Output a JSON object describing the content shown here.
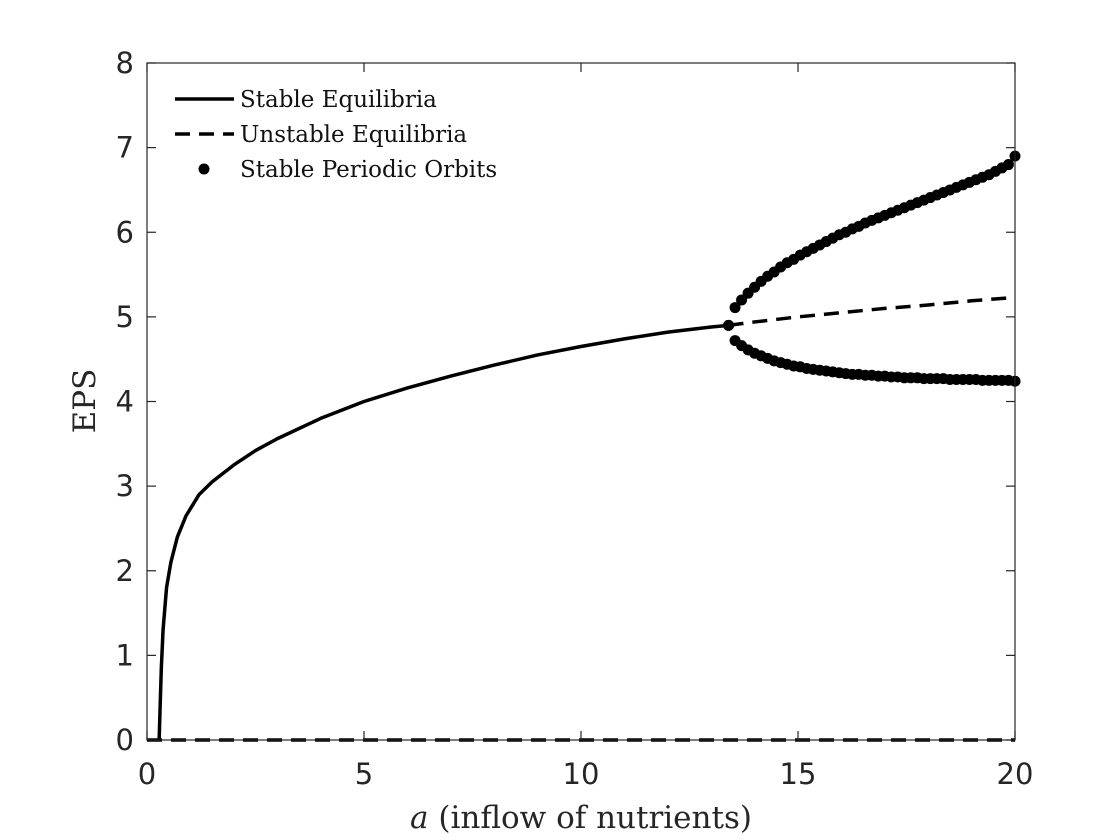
{
  "chart_data": {
    "type": "line",
    "xlabel_var": "a",
    "xlabel_rest": " (inflow of nutrients)",
    "ylabel": "EPS",
    "xlim": [
      0,
      20
    ],
    "ylim": [
      0,
      8
    ],
    "xticks": [
      0,
      5,
      10,
      15,
      20
    ],
    "yticks": [
      0,
      1,
      2,
      3,
      4,
      5,
      6,
      7,
      8
    ],
    "xtick_labels": [
      "0",
      "5",
      "10",
      "15",
      "20"
    ],
    "ytick_labels": [
      "0",
      "1",
      "2",
      "3",
      "4",
      "5",
      "6",
      "7",
      "8"
    ],
    "grid": false,
    "legend_position": "top-left",
    "legend": {
      "stable_equilibria": "Stable Equilibria",
      "unstable_equilibria": "Unstable Equilibria",
      "stable_periodic_orbits": "Stable Periodic Orbits"
    },
    "series": [
      {
        "name": "Stable Equilibria",
        "style": "solid",
        "points": [
          [
            0.28,
            0.0
          ],
          [
            0.3,
            0.35
          ],
          [
            0.33,
            0.85
          ],
          [
            0.37,
            1.3
          ],
          [
            0.45,
            1.8
          ],
          [
            0.55,
            2.1
          ],
          [
            0.7,
            2.4
          ],
          [
            0.9,
            2.65
          ],
          [
            1.2,
            2.9
          ],
          [
            1.5,
            3.05
          ],
          [
            2.0,
            3.25
          ],
          [
            2.5,
            3.42
          ],
          [
            3.0,
            3.56
          ],
          [
            4.0,
            3.8
          ],
          [
            5.0,
            4.0
          ],
          [
            6.0,
            4.16
          ],
          [
            7.0,
            4.3
          ],
          [
            8.0,
            4.43
          ],
          [
            9.0,
            4.55
          ],
          [
            10.0,
            4.65
          ],
          [
            11.0,
            4.74
          ],
          [
            12.0,
            4.82
          ],
          [
            13.0,
            4.88
          ],
          [
            13.4,
            4.9
          ]
        ]
      },
      {
        "name": "Unstable Equilibria",
        "style": "dashed",
        "segments": [
          [
            [
              13.4,
              4.9
            ],
            [
              14.0,
              4.94
            ],
            [
              15.0,
              5.0
            ],
            [
              16.0,
              5.05
            ],
            [
              17.0,
              5.1
            ],
            [
              18.0,
              5.14
            ],
            [
              19.0,
              5.19
            ],
            [
              20.0,
              5.23
            ]
          ],
          [
            [
              0.0,
              0.0
            ],
            [
              20.0,
              0.0
            ]
          ]
        ]
      },
      {
        "name": "Stable Periodic Orbits",
        "style": "markers",
        "upper": {
          "x": [
            13.4,
            13.55,
            13.7,
            13.85,
            14.0,
            14.15,
            14.3,
            14.45,
            14.6,
            14.75,
            14.9,
            15.05,
            15.2,
            15.35,
            15.5,
            15.65,
            15.8,
            15.95,
            16.1,
            16.25,
            16.4,
            16.55,
            16.7,
            16.85,
            17.0,
            17.15,
            17.3,
            17.45,
            17.6,
            17.75,
            17.9,
            18.05,
            18.2,
            18.35,
            18.5,
            18.65,
            18.8,
            18.95,
            19.1,
            19.25,
            19.4,
            19.55,
            19.7,
            19.85,
            20.0
          ],
          "y": [
            4.9,
            5.11,
            5.2,
            5.28,
            5.35,
            5.42,
            5.48,
            5.53,
            5.59,
            5.64,
            5.68,
            5.73,
            5.77,
            5.81,
            5.85,
            5.89,
            5.93,
            5.97,
            6.0,
            6.04,
            6.07,
            6.11,
            6.14,
            6.17,
            6.2,
            6.23,
            6.26,
            6.29,
            6.32,
            6.35,
            6.38,
            6.41,
            6.44,
            6.47,
            6.5,
            6.53,
            6.56,
            6.59,
            6.62,
            6.65,
            6.68,
            6.72,
            6.76,
            6.8,
            6.9
          ]
        },
        "lower": {
          "x": [
            13.4,
            13.55,
            13.7,
            13.85,
            14.0,
            14.15,
            14.3,
            14.45,
            14.6,
            14.75,
            14.9,
            15.05,
            15.2,
            15.35,
            15.5,
            15.65,
            15.8,
            15.95,
            16.1,
            16.25,
            16.4,
            16.55,
            16.7,
            16.85,
            17.0,
            17.15,
            17.3,
            17.45,
            17.6,
            17.75,
            17.9,
            18.05,
            18.2,
            18.35,
            18.5,
            18.65,
            18.8,
            18.95,
            19.1,
            19.25,
            19.4,
            19.55,
            19.7,
            19.85,
            20.0
          ],
          "y": [
            4.9,
            4.72,
            4.66,
            4.61,
            4.57,
            4.54,
            4.51,
            4.48,
            4.46,
            4.44,
            4.42,
            4.41,
            4.39,
            4.38,
            4.37,
            4.36,
            4.35,
            4.34,
            4.33,
            4.32,
            4.32,
            4.31,
            4.31,
            4.3,
            4.3,
            4.29,
            4.29,
            4.28,
            4.28,
            4.28,
            4.27,
            4.27,
            4.27,
            4.27,
            4.26,
            4.26,
            4.26,
            4.26,
            4.26,
            4.25,
            4.25,
            4.25,
            4.25,
            4.25,
            4.24
          ]
        }
      }
    ]
  },
  "colors": {
    "line": "#000000",
    "axis": "#262626",
    "background": "#ffffff"
  }
}
